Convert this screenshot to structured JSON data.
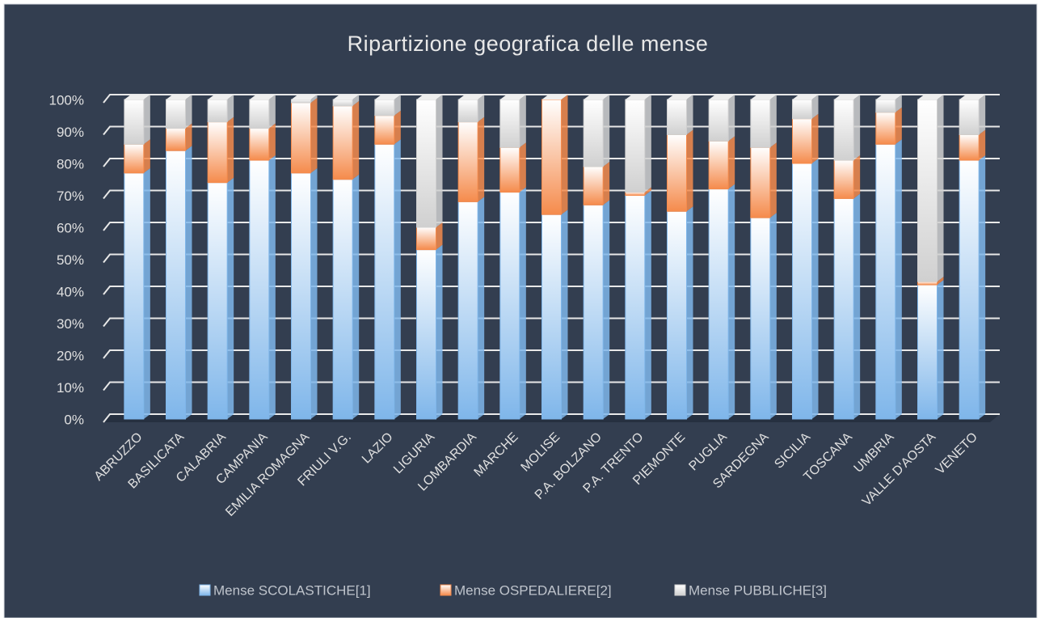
{
  "chart_data": {
    "type": "bar",
    "stacked": true,
    "title": "Ripartizione geografica delle mense",
    "categories": [
      "ABRUZZO",
      "BASILICATA",
      "CALABRIA",
      "CAMPANIA",
      "EMILIA ROMAGNA",
      "FRIULI V.G.",
      "LAZIO",
      "LIGURIA",
      "LOMBARDIA",
      "MARCHE",
      "MOLISE",
      "P.A. BOLZANO",
      "P.A. TRENTO",
      "PIEMONTE",
      "PUGLIA",
      "SARDEGNA",
      "SICILIA",
      "TOSCANA",
      "UMBRIA",
      "VALLE D'AOSTA",
      "VENETO"
    ],
    "series": [
      {
        "name": "Mense SCOLASTICHE[1]",
        "color": "#7fb6ea",
        "values": [
          77,
          84,
          74,
          81,
          77,
          75,
          86,
          53,
          68,
          71,
          64,
          67,
          70,
          65,
          72,
          63,
          80,
          69,
          86,
          42,
          81
        ]
      },
      {
        "name": "Mense OSPEDALIERE[2]",
        "color": "#f58b4c",
        "values": [
          9,
          7,
          19,
          10,
          22,
          23,
          9,
          7,
          25,
          14,
          36,
          12,
          1,
          24,
          15,
          22,
          14,
          12,
          10,
          1,
          8
        ]
      },
      {
        "name": "Mense PUBBLICHE[3]",
        "color": "#d0d0d0",
        "values": [
          14,
          9,
          7,
          9,
          1,
          2,
          5,
          40,
          7,
          15,
          0,
          21,
          29,
          11,
          13,
          15,
          6,
          19,
          4,
          57,
          11
        ]
      }
    ],
    "ylim": [
      0,
      100
    ],
    "yticks": [
      {
        "value": 0,
        "label": "0%"
      },
      {
        "value": 10,
        "label": "10%"
      },
      {
        "value": 20,
        "label": "20%"
      },
      {
        "value": 30,
        "label": "30%"
      },
      {
        "value": 40,
        "label": "40%"
      },
      {
        "value": 50,
        "label": "50%"
      },
      {
        "value": 60,
        "label": "60%"
      },
      {
        "value": 70,
        "label": "70%"
      },
      {
        "value": 80,
        "label": "80%"
      },
      {
        "value": 90,
        "label": "90%"
      },
      {
        "value": 100,
        "label": "100%"
      }
    ],
    "grid": true,
    "legend": "bottom"
  }
}
